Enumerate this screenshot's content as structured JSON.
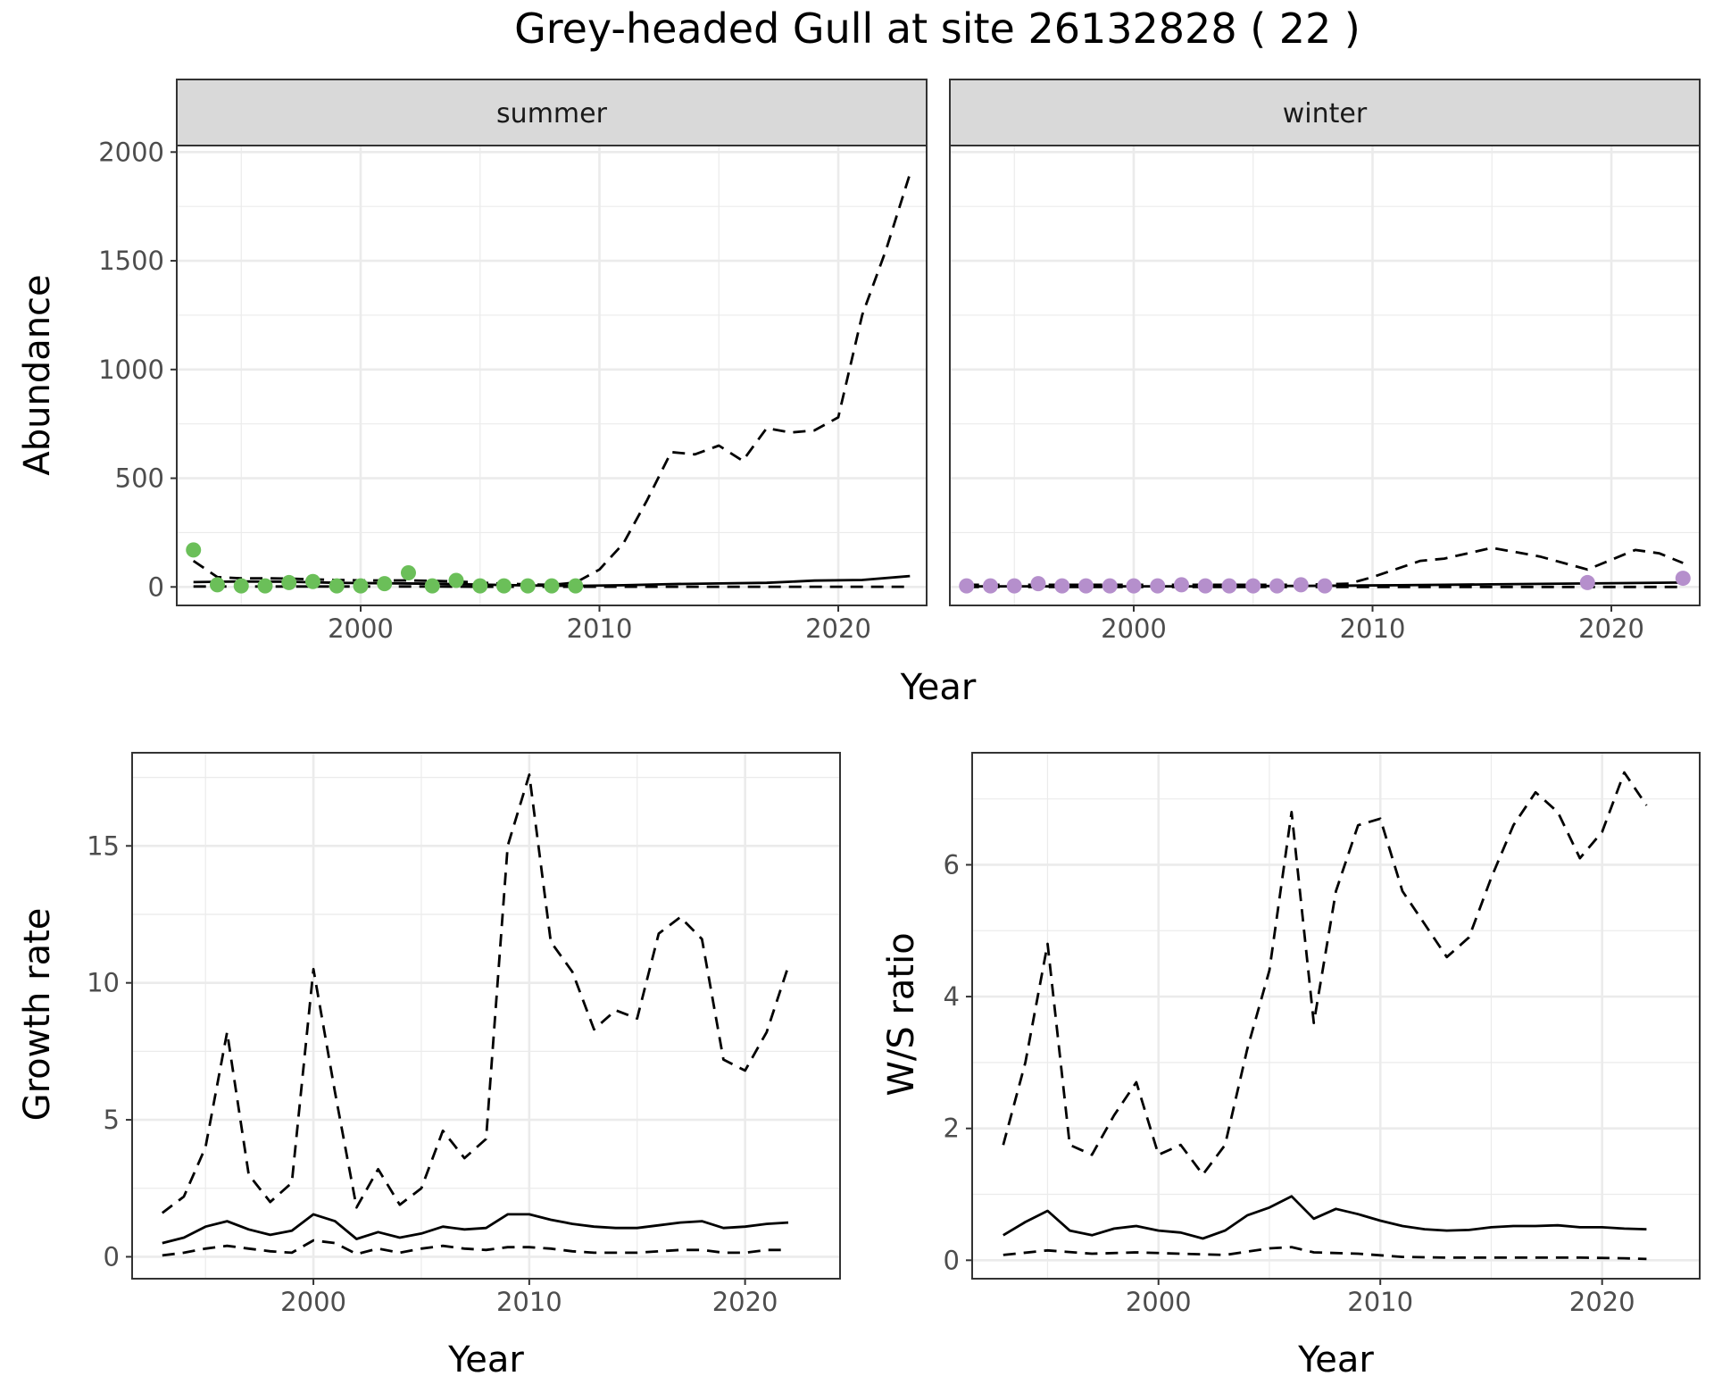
{
  "figure": {
    "title": "Grey-headed Gull at site 26132828 ( 22 )"
  },
  "colors": {
    "summer_points": "#6bbf59",
    "winter_points": "#b58fcc",
    "line": "#000000",
    "strip_fill": "#d9d9d9",
    "grid": "#ebebeb",
    "panel_border": "#333333"
  },
  "chart_data": [
    {
      "id": "abundance",
      "type": "line",
      "facets": [
        "summer",
        "winter"
      ],
      "xlabel": "Year",
      "ylabel": "Abundance",
      "xlim": [
        1992.3,
        2023.7
      ],
      "ylim": [
        -85,
        2030
      ],
      "xticks": [
        2000,
        2010,
        2020
      ],
      "yticks": [
        0,
        500,
        1000,
        1500,
        2000
      ],
      "grid": true,
      "panels": [
        {
          "strip": "summer",
          "points": {
            "x": [
              1993,
              1994,
              1995,
              1996,
              1997,
              1998,
              1999,
              2000,
              2001,
              2002,
              2003,
              2004,
              2005,
              2006,
              2007,
              2008,
              2009
            ],
            "y": [
              170,
              10,
              5,
              5,
              20,
              25,
              5,
              5,
              15,
              65,
              5,
              30,
              5,
              5,
              5,
              5,
              5
            ]
          },
          "series": [
            {
              "style": "solid",
              "x": [
                1993,
                1995,
                1997,
                1999,
                2001,
                2003,
                2005,
                2007,
                2009,
                2011,
                2013,
                2015,
                2017,
                2019,
                2021,
                2023
              ],
              "y": [
                22,
                25,
                24,
                19,
                17,
                15,
                11,
                7,
                5,
                8,
                13,
                16,
                19,
                29,
                32,
                50
              ]
            },
            {
              "style": "dashed",
              "x": [
                1993,
                1994,
                1995,
                1996,
                1997,
                1998,
                1999,
                2000,
                2001,
                2002,
                2003,
                2004,
                2005,
                2006,
                2007,
                2008,
                2009,
                2010,
                2011,
                2012,
                2013,
                2014,
                2015,
                2016,
                2017,
                2018,
                2019,
                2020,
                2021,
                2022,
                2023
              ],
              "y": [
                120,
                45,
                40,
                40,
                38,
                35,
                32,
                30,
                30,
                30,
                28,
                25,
                20,
                15,
                12,
                10,
                20,
                80,
                200,
                400,
                620,
                610,
                650,
                580,
                730,
                710,
                720,
                780,
                1250,
                1550,
                1900
              ]
            },
            {
              "style": "dashed",
              "x": [
                1993,
                1995,
                1997,
                1999,
                2001,
                2003,
                2005,
                2007,
                2009,
                2011,
                2013,
                2015,
                2017,
                2019,
                2021,
                2023
              ],
              "y": [
                2,
                2,
                2,
                2,
                2,
                2,
                1,
                1,
                1,
                1,
                1,
                1,
                1,
                1,
                1,
                1
              ]
            }
          ]
        },
        {
          "strip": "winter",
          "points": {
            "x": [
              1993,
              1994,
              1995,
              1996,
              1997,
              1998,
              1999,
              2000,
              2001,
              2002,
              2003,
              2004,
              2005,
              2006,
              2007,
              2008,
              2019,
              2023
            ],
            "y": [
              5,
              5,
              5,
              15,
              5,
              5,
              5,
              5,
              5,
              10,
              5,
              5,
              5,
              5,
              10,
              5,
              20,
              40
            ]
          },
          "series": [
            {
              "style": "solid",
              "x": [
                1993,
                1995,
                1997,
                1999,
                2001,
                2003,
                2005,
                2007,
                2009,
                2011,
                2013,
                2015,
                2017,
                2019,
                2021,
                2023
              ],
              "y": [
                3,
                3,
                3,
                3,
                3,
                3,
                4,
                5,
                6,
                8,
                10,
                12,
                14,
                16,
                18,
                20
              ]
            },
            {
              "style": "dashed",
              "x": [
                1993,
                1995,
                1997,
                1999,
                2001,
                2003,
                2005,
                2007,
                2009,
                2010,
                2012,
                2013,
                2015,
                2017,
                2019,
                2021,
                2022,
                2023
              ],
              "y": [
                10,
                10,
                10,
                10,
                10,
                10,
                10,
                10,
                15,
                45,
                120,
                130,
                180,
                140,
                80,
                170,
                155,
                110
              ]
            },
            {
              "style": "dashed",
              "x": [
                1993,
                2023
              ],
              "y": [
                0,
                0
              ]
            }
          ]
        }
      ]
    },
    {
      "id": "growth",
      "type": "line",
      "xlabel": "Year",
      "ylabel": "Growth rate",
      "xlim": [
        1991.6,
        2024.4
      ],
      "ylim": [
        -0.8,
        18.4
      ],
      "xticks": [
        2000,
        2010,
        2020
      ],
      "yticks": [
        0,
        5,
        10,
        15
      ],
      "grid": true,
      "series": [
        {
          "style": "solid",
          "x": [
            1993,
            1994,
            1995,
            1996,
            1997,
            1998,
            1999,
            2000,
            2001,
            2002,
            2003,
            2004,
            2005,
            2006,
            2007,
            2008,
            2009,
            2010,
            2011,
            2012,
            2013,
            2014,
            2015,
            2016,
            2017,
            2018,
            2019,
            2020,
            2021,
            2022
          ],
          "y": [
            0.5,
            0.7,
            1.1,
            1.3,
            1.0,
            0.8,
            0.95,
            1.55,
            1.3,
            0.65,
            0.9,
            0.7,
            0.85,
            1.1,
            1.0,
            1.05,
            1.55,
            1.55,
            1.35,
            1.2,
            1.1,
            1.05,
            1.05,
            1.15,
            1.25,
            1.3,
            1.05,
            1.1,
            1.2,
            1.25
          ]
        },
        {
          "style": "dashed",
          "x": [
            1993,
            1994,
            1995,
            1996,
            1997,
            1998,
            1999,
            2000,
            2001,
            2002,
            2003,
            2004,
            2005,
            2006,
            2007,
            2008,
            2009,
            2010,
            2011,
            2012,
            2013,
            2014,
            2015,
            2016,
            2017,
            2018,
            2019,
            2020,
            2021,
            2022
          ],
          "y": [
            1.6,
            2.2,
            4.0,
            8.2,
            3.0,
            2.0,
            2.7,
            10.5,
            6.0,
            1.8,
            3.2,
            1.9,
            2.5,
            4.6,
            3.6,
            4.3,
            15.0,
            17.6,
            11.5,
            10.4,
            8.3,
            9.0,
            8.7,
            11.8,
            12.4,
            11.6,
            7.2,
            6.8,
            8.2,
            10.6
          ]
        },
        {
          "style": "dashed",
          "x": [
            1993,
            1994,
            1995,
            1996,
            1997,
            1998,
            1999,
            2000,
            2001,
            2002,
            2003,
            2004,
            2005,
            2006,
            2007,
            2008,
            2009,
            2010,
            2011,
            2012,
            2013,
            2014,
            2015,
            2016,
            2017,
            2018,
            2019,
            2020,
            2021,
            2022
          ],
          "y": [
            0.05,
            0.15,
            0.3,
            0.4,
            0.3,
            0.2,
            0.15,
            0.6,
            0.5,
            0.1,
            0.3,
            0.15,
            0.3,
            0.4,
            0.3,
            0.25,
            0.35,
            0.35,
            0.3,
            0.2,
            0.15,
            0.15,
            0.15,
            0.2,
            0.25,
            0.25,
            0.15,
            0.15,
            0.25,
            0.25
          ]
        }
      ]
    },
    {
      "id": "ws_ratio",
      "type": "line",
      "xlabel": "Year",
      "ylabel": "W/S ratio",
      "xlim": [
        1991.6,
        2024.4
      ],
      "ylim": [
        -0.28,
        7.7
      ],
      "xticks": [
        2000,
        2010,
        2020
      ],
      "yticks": [
        0,
        2,
        4,
        6
      ],
      "grid": true,
      "series": [
        {
          "style": "solid",
          "x": [
            1993,
            1994,
            1995,
            1996,
            1997,
            1998,
            1999,
            2000,
            2001,
            2002,
            2003,
            2004,
            2005,
            2006,
            2007,
            2008,
            2009,
            2010,
            2011,
            2012,
            2013,
            2014,
            2015,
            2016,
            2017,
            2018,
            2019,
            2020,
            2021,
            2022
          ],
          "y": [
            0.38,
            0.58,
            0.75,
            0.45,
            0.38,
            0.48,
            0.52,
            0.45,
            0.42,
            0.33,
            0.45,
            0.68,
            0.8,
            0.97,
            0.63,
            0.78,
            0.7,
            0.6,
            0.52,
            0.47,
            0.45,
            0.46,
            0.5,
            0.52,
            0.52,
            0.53,
            0.5,
            0.5,
            0.48,
            0.47
          ]
        },
        {
          "style": "dashed",
          "x": [
            1993,
            1994,
            1995,
            1996,
            1997,
            1998,
            1999,
            2000,
            2001,
            2002,
            2003,
            2004,
            2005,
            2006,
            2007,
            2008,
            2009,
            2010,
            2011,
            2012,
            2013,
            2014,
            2015,
            2016,
            2017,
            2018,
            2019,
            2020,
            2021,
            2022
          ],
          "y": [
            1.75,
            3.0,
            4.8,
            1.75,
            1.6,
            2.2,
            2.7,
            1.6,
            1.75,
            1.3,
            1.75,
            3.2,
            4.4,
            6.8,
            3.6,
            5.6,
            6.6,
            6.7,
            5.6,
            5.1,
            4.6,
            4.9,
            5.8,
            6.6,
            7.1,
            6.8,
            6.1,
            6.5,
            7.4,
            6.9
          ]
        },
        {
          "style": "dashed",
          "x": [
            1993,
            1995,
            1997,
            1999,
            2001,
            2003,
            2005,
            2006,
            2007,
            2009,
            2011,
            2013,
            2015,
            2017,
            2019,
            2021,
            2022
          ],
          "y": [
            0.08,
            0.15,
            0.1,
            0.12,
            0.1,
            0.08,
            0.18,
            0.2,
            0.12,
            0.1,
            0.05,
            0.04,
            0.04,
            0.04,
            0.04,
            0.03,
            0.02
          ]
        }
      ]
    }
  ]
}
